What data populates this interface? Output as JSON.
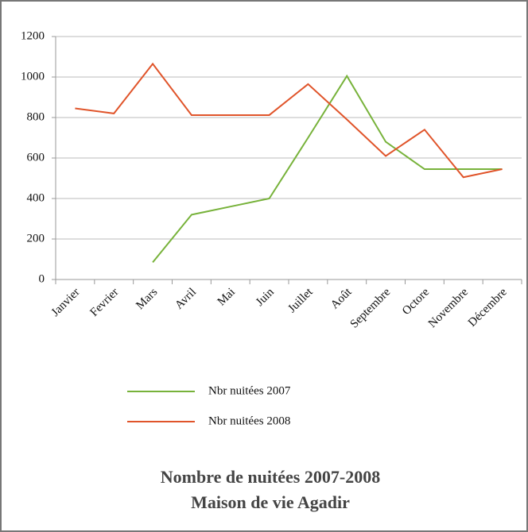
{
  "chart_data": {
    "type": "line",
    "title": "Nombre de nuitées 2007-2008",
    "subtitle": "Maison de vie Agadir",
    "categories": [
      "Janvier",
      "Fevrier",
      "Mars",
      "Avril",
      "Mai",
      "Juin",
      "Juillet",
      "Août",
      "Septembre",
      "Octore",
      "Novembre",
      "Décembre"
    ],
    "series": [
      {
        "name": "Nbr nuitées 2007",
        "color": "#77b23a",
        "values": [
          null,
          null,
          85,
          320,
          360,
          400,
          700,
          1005,
          680,
          545,
          545,
          545
        ]
      },
      {
        "name": "Nbr nuitées 2008",
        "color": "#e0542a",
        "values": [
          845,
          820,
          1065,
          812,
          812,
          812,
          965,
          790,
          610,
          740,
          505,
          545
        ]
      }
    ],
    "ylim": [
      0,
      1200
    ],
    "yticks": [
      0,
      200,
      400,
      600,
      800,
      1000,
      1200
    ],
    "grid": true,
    "legend": "bottom"
  }
}
